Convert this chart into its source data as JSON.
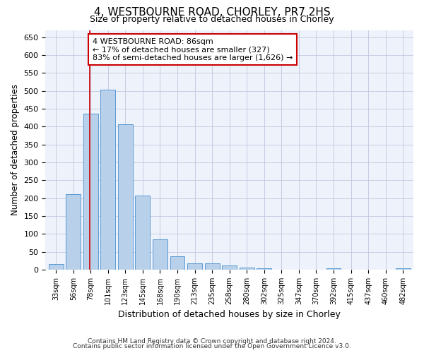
{
  "title_line1": "4, WESTBOURNE ROAD, CHORLEY, PR7 2HS",
  "title_line2": "Size of property relative to detached houses in Chorley",
  "xlabel": "Distribution of detached houses by size in Chorley",
  "ylabel": "Number of detached properties",
  "categories": [
    "33sqm",
    "56sqm",
    "78sqm",
    "101sqm",
    "123sqm",
    "145sqm",
    "168sqm",
    "190sqm",
    "213sqm",
    "235sqm",
    "258sqm",
    "280sqm",
    "302sqm",
    "325sqm",
    "347sqm",
    "370sqm",
    "392sqm",
    "415sqm",
    "437sqm",
    "460sqm",
    "482sqm"
  ],
  "values": [
    15,
    212,
    437,
    503,
    407,
    207,
    85,
    38,
    18,
    17,
    11,
    6,
    5,
    1,
    0,
    0,
    5,
    0,
    0,
    0,
    5
  ],
  "bar_color": "#b8d0ea",
  "bar_edge_color": "#5b9bd5",
  "reference_line_x": 1.95,
  "annotation_text_line1": "4 WESTBOURNE ROAD: 86sqm",
  "annotation_text_line2": "← 17% of detached houses are smaller (327)",
  "annotation_text_line3": "83% of semi-detached houses are larger (1,626) →",
  "annotation_box_color": "#ffffff",
  "annotation_box_edge_color": "#cc0000",
  "reference_line_color": "#cc0000",
  "ylim": [
    0,
    670
  ],
  "yticks": [
    0,
    50,
    100,
    150,
    200,
    250,
    300,
    350,
    400,
    450,
    500,
    550,
    600,
    650
  ],
  "footer_line1": "Contains HM Land Registry data © Crown copyright and database right 2024.",
  "footer_line2": "Contains public sector information licensed under the Open Government Licence v3.0.",
  "bg_color": "#eef2fb",
  "grid_color": "#c0c8de"
}
